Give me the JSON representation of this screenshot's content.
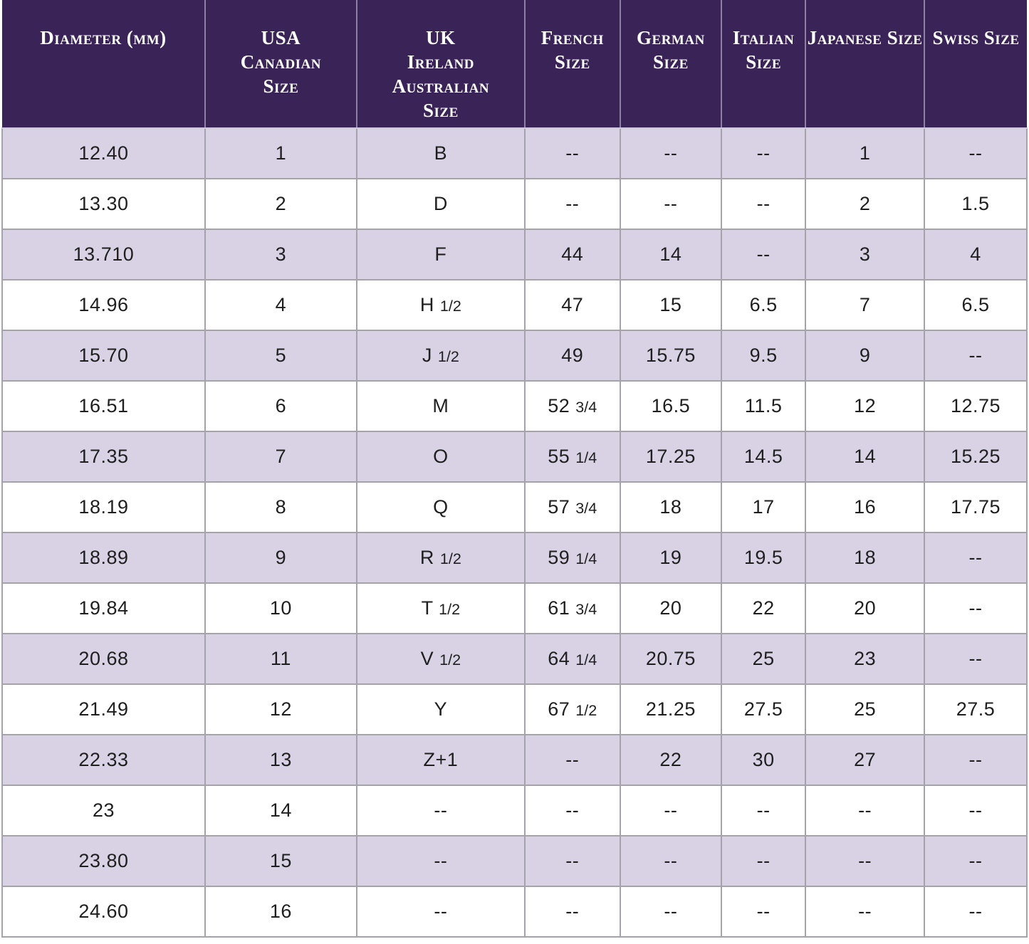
{
  "palette": {
    "header_bg": "#3a2357",
    "header_text": "#ffffff",
    "row_alt_bg": "#d8d2e4",
    "row_bg": "#ffffff",
    "body_text": "#1f1f1f",
    "border": "#a5a2ac"
  },
  "chart_data": {
    "type": "table",
    "title": "",
    "columns": [
      {
        "id": "diameter",
        "label": "Diameter (mm)"
      },
      {
        "id": "usa",
        "label": "USA\nCanadian\nSize"
      },
      {
        "id": "uk",
        "label": "UK\nIreland\nAustralian\nSize"
      },
      {
        "id": "french",
        "label": "French\nSize"
      },
      {
        "id": "german",
        "label": "German\nSize"
      },
      {
        "id": "italian",
        "label": "Italian\nSize"
      },
      {
        "id": "japanese",
        "label": "Japanese Size"
      },
      {
        "id": "swiss",
        "label": "Swiss Size"
      }
    ],
    "rows": [
      [
        "12.40",
        "1",
        "B",
        "--",
        "--",
        "--",
        "1",
        "--"
      ],
      [
        "13.30",
        "2",
        "D",
        "--",
        "--",
        "--",
        "2",
        "1.5"
      ],
      [
        "13.710",
        "3",
        "F",
        "44",
        "14",
        "--",
        "3",
        "4"
      ],
      [
        "14.96",
        "4",
        "H 1/2",
        "47",
        "15",
        "6.5",
        "7",
        "6.5"
      ],
      [
        "15.70",
        "5",
        "J 1/2",
        "49",
        "15.75",
        "9.5",
        "9",
        "--"
      ],
      [
        "16.51",
        "6",
        "M",
        "52 3/4",
        "16.5",
        "11.5",
        "12",
        "12.75"
      ],
      [
        "17.35",
        "7",
        "O",
        "55 1/4",
        "17.25",
        "14.5",
        "14",
        "15.25"
      ],
      [
        "18.19",
        "8",
        "Q",
        "57 3/4",
        "18",
        "17",
        "16",
        "17.75"
      ],
      [
        "18.89",
        "9",
        "R 1/2",
        "59 1/4",
        "19",
        "19.5",
        "18",
        "--"
      ],
      [
        "19.84",
        "10",
        "T 1/2",
        "61 3/4",
        "20",
        "22",
        "20",
        "--"
      ],
      [
        "20.68",
        "11",
        "V 1/2",
        "64 1/4",
        "20.75",
        "25",
        "23",
        "--"
      ],
      [
        "21.49",
        "12",
        "Y",
        "67 1/2",
        "21.25",
        "27.5",
        "25",
        "27.5"
      ],
      [
        "22.33",
        "13",
        "Z+1",
        "--",
        "22",
        "30",
        "27",
        "--"
      ],
      [
        "23",
        "14",
        "--",
        "--",
        "--",
        "--",
        "--",
        "--"
      ],
      [
        "23.80",
        "15",
        "--",
        "--",
        "--",
        "--",
        "--",
        "--"
      ],
      [
        "24.60",
        "16",
        "--",
        "--",
        "--",
        "--",
        "--",
        "--"
      ]
    ]
  }
}
